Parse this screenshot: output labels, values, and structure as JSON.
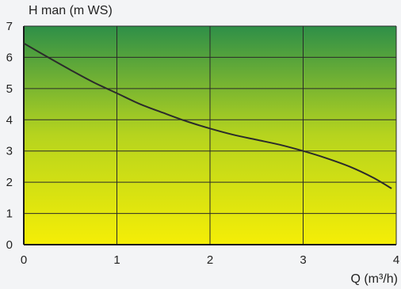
{
  "chart_data": {
    "type": "line",
    "ylabel": "H man (m WS)",
    "xlabel": "Q (m³/h)",
    "xlim": [
      0,
      4
    ],
    "ylim": [
      0,
      7
    ],
    "x_ticks": [
      "0",
      "1",
      "2",
      "3",
      "4"
    ],
    "y_ticks": [
      "0",
      "1",
      "2",
      "3",
      "4",
      "5",
      "6",
      "7"
    ],
    "grid": true,
    "background_gradient": {
      "top": "#2e8f48",
      "middle": "#b6d41e",
      "bottom": "#f5ee06"
    },
    "line_color": "#2b2b2b",
    "series": [
      {
        "x": [
          0,
          0.25,
          0.5,
          0.75,
          1.0,
          1.25,
          1.5,
          1.75,
          2.0,
          2.25,
          2.5,
          2.75,
          3.0,
          3.25,
          3.5,
          3.75,
          3.95
        ],
        "y": [
          6.45,
          6.02,
          5.6,
          5.2,
          4.85,
          4.5,
          4.22,
          3.95,
          3.72,
          3.52,
          3.36,
          3.2,
          3.0,
          2.77,
          2.5,
          2.15,
          1.8
        ]
      }
    ]
  }
}
